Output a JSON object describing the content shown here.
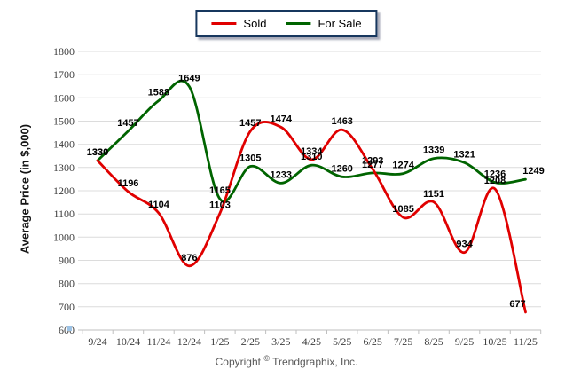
{
  "chart_data": {
    "type": "line",
    "title": "",
    "xlabel": "",
    "ylabel": "Average Price (in $,000)",
    "categories": [
      "9/24",
      "10/24",
      "11/24",
      "12/24",
      "1/25",
      "2/25",
      "3/25",
      "4/25",
      "5/25",
      "6/25",
      "7/25",
      "8/25",
      "9/25",
      "10/25",
      "11/25"
    ],
    "series": [
      {
        "name": "Sold",
        "color": "#e00000",
        "values": [
          1330,
          1196,
          1104,
          876,
          1103,
          1457,
          1474,
          1334,
          1463,
          1293,
          1085,
          1151,
          934,
          1208,
          677
        ]
      },
      {
        "name": "For Sale",
        "color": "#006400",
        "values": [
          1330,
          1457,
          1588,
          1649,
          1165,
          1305,
          1233,
          1310,
          1260,
          1277,
          1274,
          1339,
          1321,
          1236,
          1249
        ]
      }
    ],
    "ylim": [
      600,
      1800
    ],
    "ytick_step": 100,
    "grid": "horizontal",
    "legend_position": "top-center",
    "data_labels": true,
    "curve": "smooth"
  },
  "footer": {
    "prefix": "Copyright",
    "symbol": "©",
    "company": "Trendgraphix, Inc."
  }
}
